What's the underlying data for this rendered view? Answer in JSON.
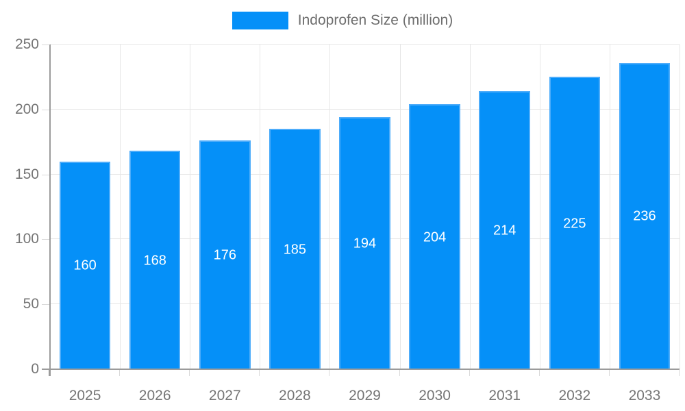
{
  "chart_data": {
    "type": "bar",
    "title": "",
    "legend": [
      "Indoprofen Size (million)"
    ],
    "categories": [
      "2025",
      "2026",
      "2027",
      "2028",
      "2029",
      "2030",
      "2031",
      "2032",
      "2033"
    ],
    "values": [
      160,
      168,
      176,
      185,
      194,
      204,
      214,
      225,
      236
    ],
    "ylim": [
      0,
      250
    ],
    "yticks": [
      0,
      50,
      100,
      150,
      200,
      250
    ],
    "xlabel": "",
    "ylabel": "",
    "grid": true,
    "legend_position": "top-center",
    "value_label_position": "centered-inside-bar",
    "colors": {
      "bar_fill": "#0590f8",
      "bar_border": "#4dacfa",
      "axis_line": "#9b9b9b",
      "tick": "#d9d9d9",
      "gridline": "#e6e6e6",
      "axis_text": "#757575",
      "legend_text": "#6e6e6e",
      "value_text": "#ffffff",
      "background": "#ffffff"
    }
  }
}
